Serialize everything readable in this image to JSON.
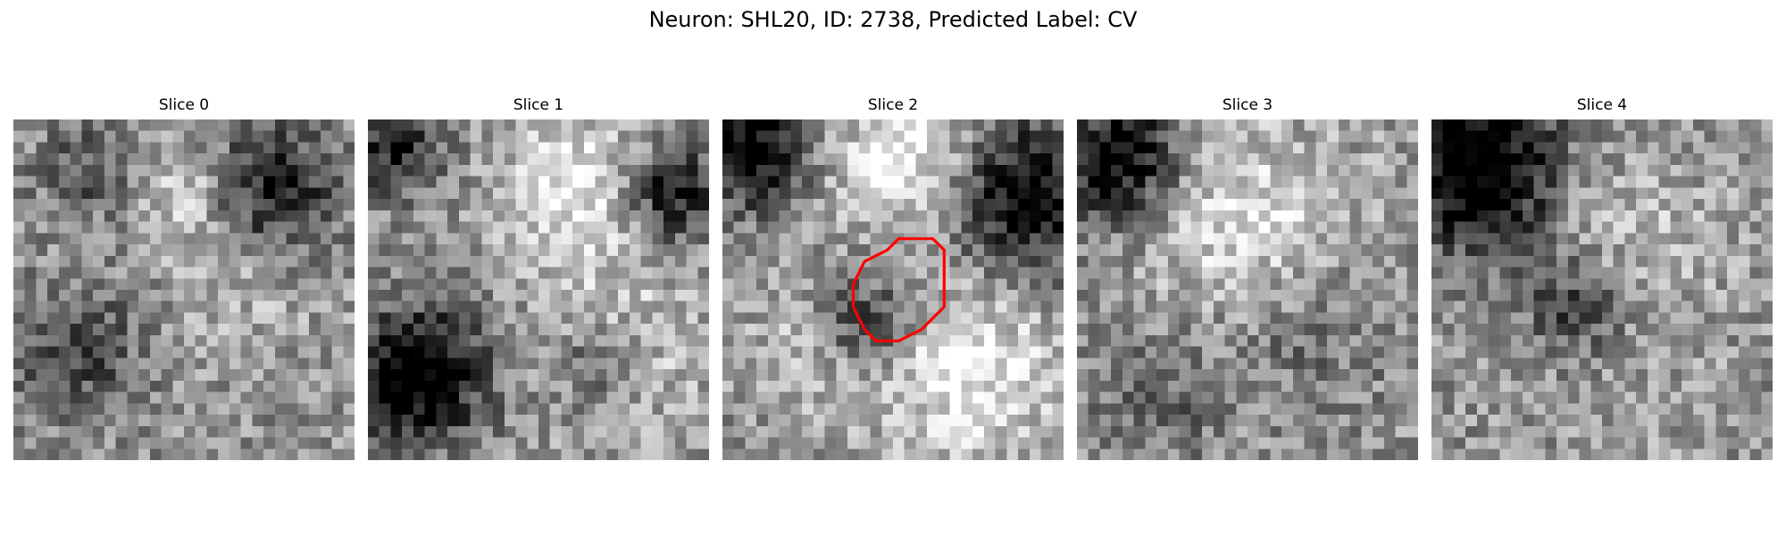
{
  "figure": {
    "title": "Neuron: SHL20, ID: 2738, Predicted Label: CV",
    "panels": [
      {
        "title": "Slice 0",
        "seed": 11,
        "roi": false
      },
      {
        "title": "Slice 1",
        "seed": 23,
        "roi": false
      },
      {
        "title": "Slice 2",
        "seed": 37,
        "roi": true
      },
      {
        "title": "Slice 3",
        "seed": 41,
        "roi": false
      },
      {
        "title": "Slice 4",
        "seed": 53,
        "roi": false
      }
    ],
    "colormap": "gray",
    "roi_color": "#ff0000"
  }
}
